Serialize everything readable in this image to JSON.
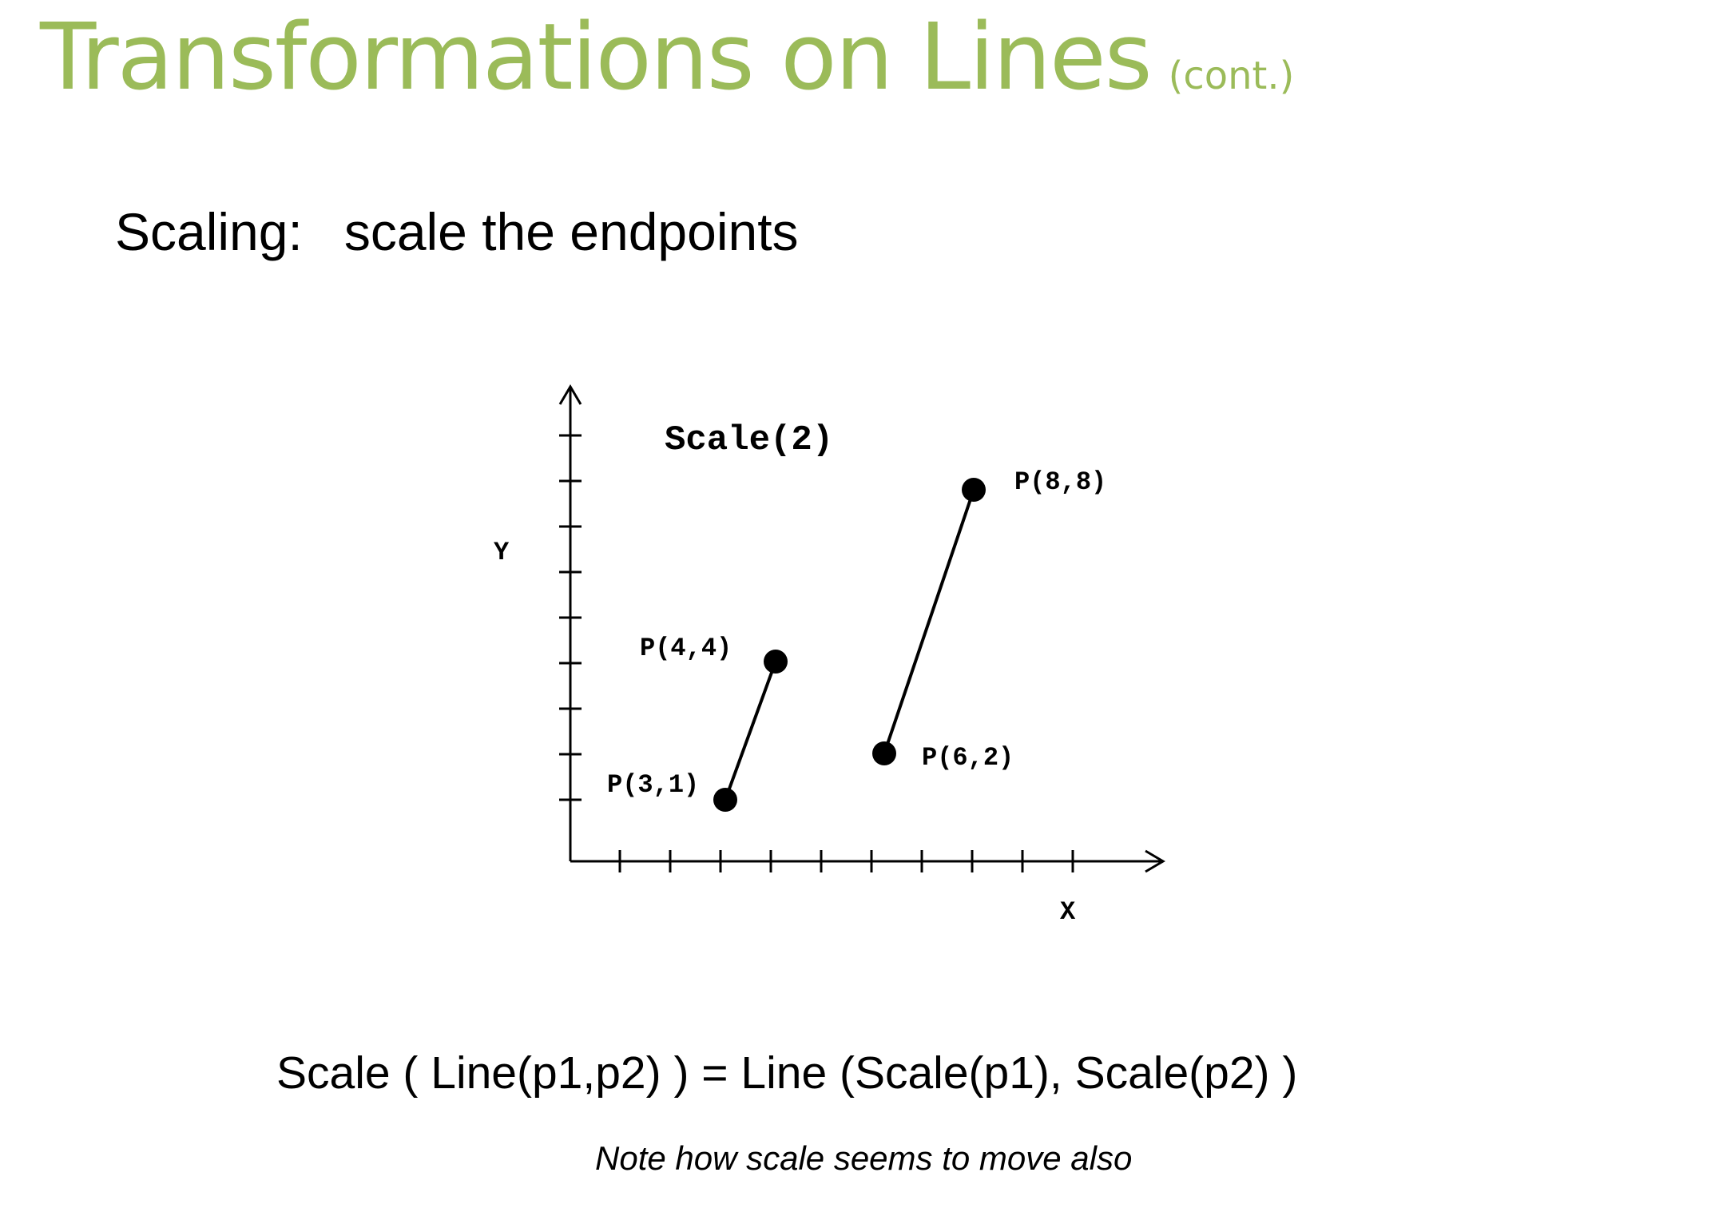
{
  "slide": {
    "title": "Transformations on Lines",
    "title_suffix": "(cont.)",
    "title_color": "#9bbb59",
    "subtitle_label": "Scaling:",
    "subtitle_text": "scale the endpoints",
    "formula": "Scale ( Line(p1,p2) ) = Line (Scale(p1), Scale(p2) )",
    "note": "Note how scale seems to move  also"
  },
  "diagram": {
    "caption": "Scale(2)",
    "y_axis_label": "Y",
    "x_axis_label": "X",
    "x_ticks": 10,
    "y_ticks": 9,
    "original_line": {
      "p1": {
        "label": "P(3,1)",
        "x": 3,
        "y": 1
      },
      "p2": {
        "label": "P(4,4)",
        "x": 4,
        "y": 4
      }
    },
    "scaled_line": {
      "p1": {
        "label": "P(6,2)",
        "x": 6,
        "y": 2
      },
      "p2": {
        "label": "P(8,8)",
        "x": 8,
        "y": 8
      }
    }
  }
}
